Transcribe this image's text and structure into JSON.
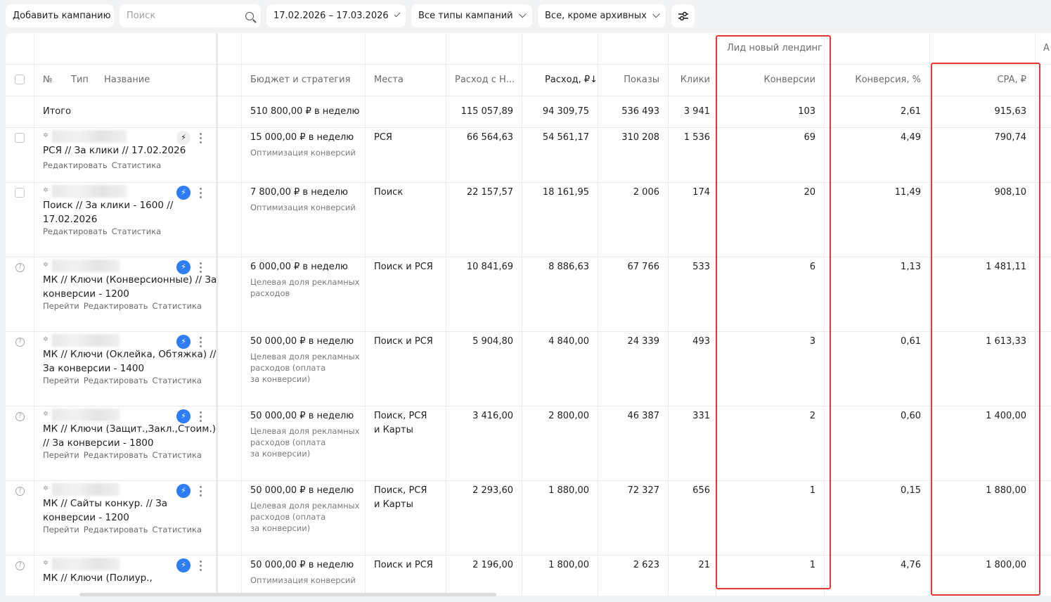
{
  "toolbar": {
    "add_campaign": "Добавить кампанию",
    "search_placeholder": "Поиск",
    "date_range": "17.02.2026 – 17.03.2026",
    "campaign_types": "Все типы кампаний",
    "status_filter": "Все, кроме архивных"
  },
  "table": {
    "group_header": "Лид новый лендинг",
    "group_header_right": "А",
    "columns": {
      "num": "№",
      "type": "Тип",
      "name": "Название",
      "budget": "Бюджет и стратегия",
      "places": "Места",
      "spend_vat": "Расход с Н...",
      "spend": "Расход, ₽↓",
      "impressions": "Показы",
      "clicks": "Клики",
      "conversions": "Конверсии",
      "conv_rate": "Конверсия, %",
      "cpa": "CPA, ₽"
    },
    "total": {
      "label": "Итого",
      "budget": "510 800,00 ₽ в неделю",
      "spend_vat": "115 057,89",
      "spend": "94 309,75",
      "impressions": "536 493",
      "clicks": "3 941",
      "conversions": "103",
      "conv_rate": "2,61",
      "cpa": "915,63"
    },
    "rows": [
      {
        "name_l1": "РСЯ // За клики // 17.02.2026",
        "name_l2": "",
        "links": [
          "Редактировать",
          "Статистика"
        ],
        "budget": "15 000,00 ₽ в неделю",
        "strategy": [
          "Оптимизация конверсий"
        ],
        "places": [
          "РСЯ"
        ],
        "spend_vat": "66 564,63",
        "spend": "54 561,17",
        "impressions": "310 208",
        "clicks": "1 536",
        "conversions": "69",
        "conv_rate": "4,49",
        "cpa": "790,74"
      },
      {
        "name_l1": "Поиск // За клики - 1600 //",
        "name_l2": "17.02.2026",
        "links": [
          "Редактировать",
          "Статистика"
        ],
        "budget": "7 800,00 ₽ в неделю",
        "strategy": [
          "Оптимизация конверсий"
        ],
        "places": [
          "Поиск"
        ],
        "spend_vat": "22 157,57",
        "spend": "18 161,95",
        "impressions": "2 006",
        "clicks": "174",
        "conversions": "20",
        "conv_rate": "11,49",
        "cpa": "908,10"
      },
      {
        "name_l1": "МК // Ключи (Конверсионные) // За",
        "name_l2": "конверсии - 1200",
        "links": [
          "Перейти",
          "Редактировать",
          "Статистика"
        ],
        "budget": "6 000,00 ₽ в неделю",
        "strategy": [
          "Целевая доля рекламных",
          "расходов"
        ],
        "places": [
          "Поиск и РСЯ"
        ],
        "spend_vat": "10 841,69",
        "spend": "8 886,63",
        "impressions": "67 766",
        "clicks": "533",
        "conversions": "6",
        "conv_rate": "1,13",
        "cpa": "1 481,11"
      },
      {
        "name_l1": "МК // Ключи (Оклейка, Обтяжка) //",
        "name_l2": "За конверсии - 1400",
        "links": [
          "Перейти",
          "Редактировать",
          "Статистика"
        ],
        "budget": "50 000,00 ₽ в неделю",
        "strategy": [
          "Целевая доля рекламных",
          "расходов (оплата",
          "за конверсии)"
        ],
        "places": [
          "Поиск и РСЯ"
        ],
        "spend_vat": "5 904,80",
        "spend": "4 840,00",
        "impressions": "24 339",
        "clicks": "493",
        "conversions": "3",
        "conv_rate": "0,61",
        "cpa": "1 613,33"
      },
      {
        "name_l1": "МК // Ключи (Защит.,Закл.,Стоим.)",
        "name_l2": "// За конверсии - 1800",
        "links": [
          "Перейти",
          "Редактировать",
          "Статистика"
        ],
        "budget": "50 000,00 ₽ в неделю",
        "strategy": [
          "Целевая доля рекламных",
          "расходов (оплата",
          "за конверсии)"
        ],
        "places": [
          "Поиск, РСЯ",
          "и Карты"
        ],
        "spend_vat": "3 416,00",
        "spend": "2 800,00",
        "impressions": "46 387",
        "clicks": "331",
        "conversions": "2",
        "conv_rate": "0,60",
        "cpa": "1 400,00"
      },
      {
        "name_l1": "МК // Сайты конкур. // За",
        "name_l2": "конверсии - 1200",
        "links": [
          "Перейти",
          "Редактировать",
          "Статистика"
        ],
        "budget": "50 000,00 ₽ в неделю",
        "strategy": [
          "Целевая доля рекламных",
          "расходов (оплата",
          "за конверсии)"
        ],
        "places": [
          "Поиск, РСЯ",
          "и Карты"
        ],
        "spend_vat": "2 293,60",
        "spend": "1 880,00",
        "impressions": "72 327",
        "clicks": "656",
        "conversions": "1",
        "conv_rate": "0,15",
        "cpa": "1 880,00"
      },
      {
        "name_l1": "МК // Ключи (Полиур.,",
        "name_l2": "",
        "links": [],
        "budget": "50 000,00 ₽ в неделю",
        "strategy": [
          "Оптимизация конверсий"
        ],
        "places": [
          "Поиск и РСЯ"
        ],
        "spend_vat": "2 196,00",
        "spend": "1 800,00",
        "impressions": "2 623",
        "clicks": "21",
        "conversions": "1",
        "conv_rate": "4,76",
        "cpa": "1 800,00"
      }
    ]
  },
  "accent_colors": {
    "highlight": "#e53935",
    "autopilot": "#2e7cf6"
  }
}
